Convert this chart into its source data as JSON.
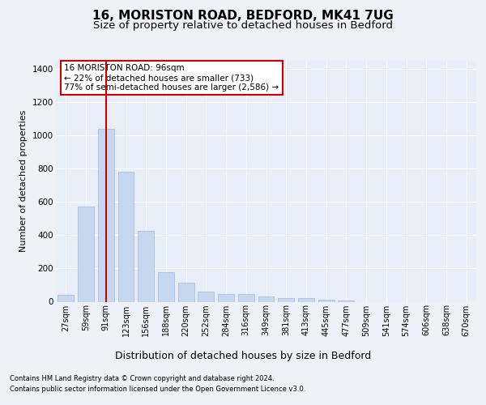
{
  "title": "16, MORISTON ROAD, BEDFORD, MK41 7UG",
  "subtitle": "Size of property relative to detached houses in Bedford",
  "xlabel": "Distribution of detached houses by size in Bedford",
  "ylabel": "Number of detached properties",
  "categories": [
    "27sqm",
    "59sqm",
    "91sqm",
    "123sqm",
    "156sqm",
    "188sqm",
    "220sqm",
    "252sqm",
    "284sqm",
    "316sqm",
    "349sqm",
    "381sqm",
    "413sqm",
    "445sqm",
    "477sqm",
    "509sqm",
    "541sqm",
    "574sqm",
    "606sqm",
    "638sqm",
    "670sqm"
  ],
  "bar_values": [
    40,
    575,
    1040,
    780,
    425,
    180,
    115,
    62,
    45,
    45,
    30,
    20,
    20,
    10,
    5,
    0,
    0,
    0,
    0,
    0,
    0
  ],
  "bar_color": "#c5d8f0",
  "bar_edgecolor": "#a0b8d8",
  "vline_x": 2,
  "vline_color": "#cc0000",
  "annotation_text": "16 MORISTON ROAD: 96sqm\n← 22% of detached houses are smaller (733)\n77% of semi-detached houses are larger (2,586) →",
  "annotation_box_color": "#ffffff",
  "annotation_box_edgecolor": "#cc0000",
  "ylim": [
    0,
    1450
  ],
  "yticks": [
    0,
    200,
    400,
    600,
    800,
    1000,
    1200,
    1400
  ],
  "background_color": "#eef2f8",
  "plot_background": "#e8eef8",
  "footer_line1": "Contains HM Land Registry data © Crown copyright and database right 2024.",
  "footer_line2": "Contains public sector information licensed under the Open Government Licence v3.0.",
  "title_fontsize": 11,
  "subtitle_fontsize": 9.5,
  "xlabel_fontsize": 9,
  "ylabel_fontsize": 8
}
